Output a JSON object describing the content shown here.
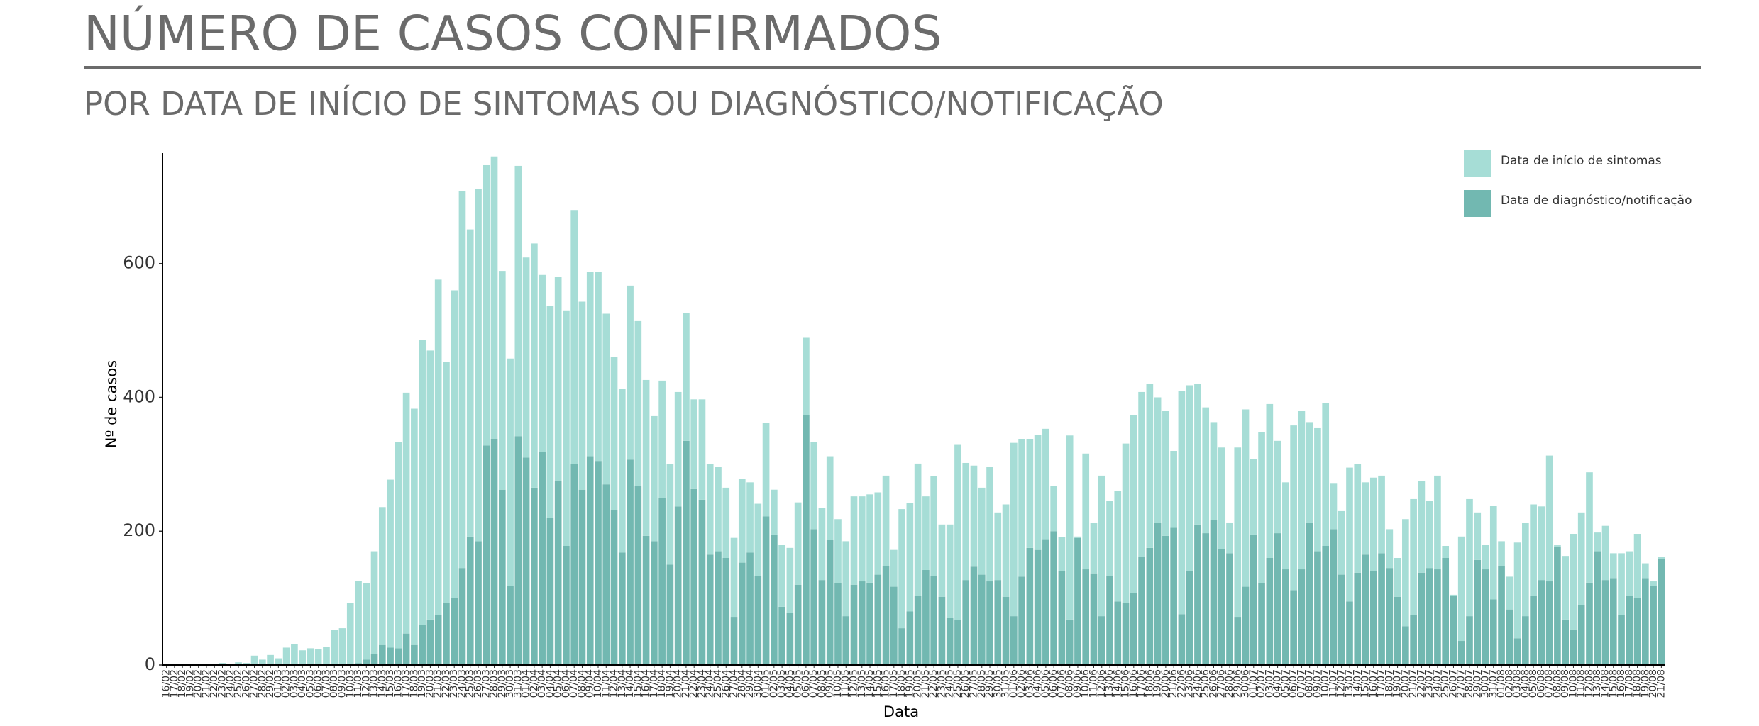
{
  "chart_data": {
    "type": "stacked_bar",
    "title": "NÚMERO DE CASOS CONFIRMADOS",
    "subtitle": "POR DATA DE INÍCIO DE SINTOMAS OU DIAGNÓSTICO/NOTIFICAÇÃO",
    "xlabel": "Data",
    "ylabel": "Nº de casos",
    "ylim": [
      0,
      765
    ],
    "yticks": [
      0,
      200,
      400,
      600
    ],
    "grid": false,
    "legend": "top-right",
    "categories": [
      "16/02",
      "17/02",
      "18/02",
      "19/02",
      "20/02",
      "21/02",
      "22/02",
      "23/02",
      "24/02",
      "25/02",
      "26/02",
      "27/02",
      "28/02",
      "29/02",
      "01/03",
      "02/03",
      "03/03",
      "04/03",
      "05/03",
      "06/03",
      "07/03",
      "08/03",
      "09/03",
      "10/03",
      "11/03",
      "12/03",
      "13/03",
      "14/03",
      "15/03",
      "16/03",
      "17/03",
      "18/03",
      "19/03",
      "20/03",
      "21/03",
      "22/03",
      "23/03",
      "24/03",
      "25/03",
      "26/03",
      "27/03",
      "28/03",
      "29/03",
      "30/03",
      "31/03",
      "01/04",
      "02/04",
      "03/04",
      "04/04",
      "05/04",
      "06/04",
      "07/04",
      "08/04",
      "09/04",
      "10/04",
      "11/04",
      "12/04",
      "13/04",
      "14/04",
      "15/04",
      "16/04",
      "17/04",
      "18/04",
      "19/04",
      "20/04",
      "21/04",
      "22/04",
      "23/04",
      "24/04",
      "25/04",
      "26/04",
      "27/04",
      "28/04",
      "29/04",
      "30/04",
      "01/05",
      "02/05",
      "03/05",
      "04/05",
      "05/05",
      "06/05",
      "07/05",
      "08/05",
      "09/05",
      "10/05",
      "11/05",
      "12/05",
      "13/05",
      "14/05",
      "15/05",
      "16/05",
      "17/05",
      "18/05",
      "19/05",
      "20/05",
      "21/05",
      "22/05",
      "23/05",
      "24/05",
      "25/05",
      "26/05",
      "27/05",
      "28/05",
      "29/05",
      "30/05",
      "31/05",
      "01/06",
      "02/06",
      "03/06",
      "04/06",
      "05/06",
      "06/06",
      "07/06",
      "08/06",
      "09/06",
      "10/06",
      "11/06",
      "12/06",
      "13/06",
      "14/06",
      "15/06",
      "16/06",
      "17/06",
      "18/06",
      "19/06",
      "20/06",
      "21/06",
      "22/06",
      "23/06",
      "24/06",
      "25/06",
      "26/06",
      "27/06",
      "28/06",
      "29/06",
      "30/06",
      "01/07",
      "02/07",
      "03/07",
      "04/07",
      "05/07",
      "06/07",
      "07/07",
      "08/07",
      "09/07",
      "10/07",
      "11/07",
      "12/07",
      "13/07",
      "14/07",
      "15/07",
      "16/07",
      "17/07",
      "18/07",
      "19/07",
      "20/07",
      "21/07",
      "22/07",
      "23/07",
      "24/07",
      "25/07",
      "26/07",
      "27/07",
      "28/07",
      "29/07",
      "30/07",
      "31/07",
      "01/08",
      "02/08",
      "03/08",
      "04/08",
      "05/08",
      "06/08",
      "07/08",
      "08/08",
      "09/08",
      "10/08",
      "11/08",
      "12/08",
      "13/08",
      "14/08",
      "15/08",
      "16/08",
      "17/08",
      "18/08",
      "19/08",
      "20/08",
      "21/08"
    ],
    "series": [
      {
        "name": "Data de início de sintomas",
        "color": "#a6ddd6",
        "values": [
          0,
          0,
          1,
          0,
          1,
          2,
          1,
          3,
          2,
          4,
          3,
          14,
          8,
          15,
          10,
          26,
          31,
          22,
          25,
          24,
          27,
          52,
          55,
          91,
          123,
          114,
          154,
          206,
          251,
          308,
          360,
          353,
          426,
          402,
          501,
          360,
          460,
          563,
          459,
          526,
          419,
          422,
          327,
          340,
          404,
          299,
          365,
          265,
          317,
          305,
          352,
          380,
          281,
          276,
          283,
          255,
          228,
          245,
          260,
          247,
          233,
          187,
          175,
          150,
          171,
          191,
          134,
          150,
          135,
          126,
          105,
          118,
          125,
          105,
          108,
          140,
          67,
          93,
          97,
          123,
          116,
          130,
          108,
          125,
          96,
          112,
          132,
          127,
          132,
          123,
          135,
          55,
          178,
          162,
          198,
          110,
          149,
          108,
          140,
          263,
          175,
          151,
          130,
          171,
          101,
          138,
          259,
          206,
          163,
          172,
          165,
          67,
          51,
          275,
          2,
          173,
          75,
          210,
          112,
          165,
          238,
          265,
          246,
          245,
          188,
          187,
          115,
          334,
          278,
          210,
          188,
          146,
          152,
          46,
          253,
          265,
          113,
          226,
          230,
          138,
          130,
          246,
          237,
          150,
          185,
          214,
          69,
          95,
          200,
          162,
          108,
          140,
          116,
          58,
          58,
          160,
          173,
          137,
          100,
          140,
          18,
          2,
          156,
          175,
          71,
          37,
          140,
          37,
          49,
          143,
          139,
          137,
          110,
          188,
          2,
          95,
          143,
          138,
          165,
          28,
          81,
          37,
          92,
          67,
          96,
          22,
          7,
          4
        ]
      },
      {
        "name": "Data de diagnóstico/notificação",
        "color": "#72b8b1",
        "values": [
          0,
          0,
          0,
          0,
          0,
          0,
          0,
          0,
          0,
          0,
          0,
          0,
          0,
          0,
          0,
          0,
          0,
          0,
          0,
          0,
          0,
          0,
          0,
          2,
          3,
          8,
          16,
          30,
          26,
          25,
          47,
          30,
          60,
          68,
          75,
          93,
          100,
          145,
          192,
          185,
          328,
          338,
          262,
          118,
          342,
          310,
          265,
          318,
          220,
          275,
          178,
          300,
          262,
          312,
          305,
          270,
          232,
          168,
          307,
          267,
          193,
          185,
          250,
          150,
          237,
          335,
          263,
          247,
          165,
          170,
          160,
          72,
          153,
          168,
          133,
          222,
          195,
          87,
          78,
          120,
          373,
          203,
          127,
          187,
          122,
          73,
          120,
          125,
          123,
          135,
          148,
          117,
          55,
          80,
          103,
          142,
          133,
          102,
          70,
          67,
          127,
          147,
          135,
          125,
          127,
          102,
          73,
          132,
          175,
          172,
          188,
          200,
          140,
          68,
          190,
          143,
          137,
          73,
          133,
          95,
          93,
          108,
          162,
          175,
          212,
          193,
          205,
          76,
          140,
          210,
          197,
          217,
          173,
          167,
          72,
          117,
          195,
          122,
          160,
          197,
          143,
          112,
          143,
          213,
          170,
          178,
          203,
          135,
          95,
          138,
          165,
          140,
          167,
          145,
          102,
          58,
          75,
          138,
          145,
          143,
          160,
          103,
          36,
          73,
          157,
          143,
          98,
          148,
          83,
          40,
          73,
          103,
          127,
          125,
          177,
          68,
          53,
          90,
          123,
          170,
          127,
          130,
          75,
          103,
          100,
          130,
          118,
          158
        ]
      }
    ]
  }
}
